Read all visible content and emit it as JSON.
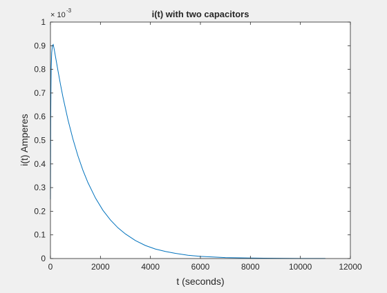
{
  "chart_data": {
    "type": "line",
    "title": "i(t) with two capacitors",
    "xlabel": "t (seconds)",
    "ylabel": "i(t) Amperes",
    "y_exponent_label": "× 10",
    "y_exponent_power": "-3",
    "xlim": [
      0,
      12000
    ],
    "ylim": [
      0,
      0.001
    ],
    "grid": false,
    "legend": "none",
    "x_ticks": [
      0,
      2000,
      4000,
      6000,
      8000,
      10000,
      12000
    ],
    "x_tick_labels": [
      "0",
      "2000",
      "4000",
      "6000",
      "8000",
      "10000",
      "12000"
    ],
    "y_ticks": [
      0,
      0.0001,
      0.0002,
      0.0003,
      0.0004,
      0.0005,
      0.0006,
      0.0007,
      0.0008,
      0.0009,
      0.001
    ],
    "y_tick_labels": [
      "0",
      "0.1",
      "0.2",
      "0.3",
      "0.4",
      "0.5",
      "0.6",
      "0.7",
      "0.8",
      "0.9",
      "1"
    ],
    "line_color": "#0072bd",
    "series": [
      {
        "x": [
          0,
          5,
          10,
          20,
          30,
          50,
          80,
          110,
          150,
          200,
          300,
          400,
          500,
          700,
          900,
          1100,
          1300,
          1500,
          1800,
          2100,
          2400,
          2700,
          3000,
          3400,
          3800,
          4200,
          4600,
          5000,
          5500,
          6000,
          7000,
          8000,
          9000,
          10000,
          11000
        ],
        "y": [
          0.00025,
          0.00042,
          0.00058,
          0.00072,
          0.00081,
          0.00087,
          0.0009,
          0.000905,
          0.000885,
          0.000855,
          0.000795,
          0.000737,
          0.000683,
          0.000587,
          0.000505,
          0.000434,
          0.000373,
          0.000321,
          0.000256,
          0.000204,
          0.000163,
          0.00013,
          0.000104,
          7.6e-05,
          5.5e-05,
          4e-05,
          3e-05,
          2.2e-05,
          1.4e-05,
          9e-06,
          4e-06,
          2e-06,
          1e-06,
          5e-07,
          2e-07
        ]
      }
    ]
  }
}
